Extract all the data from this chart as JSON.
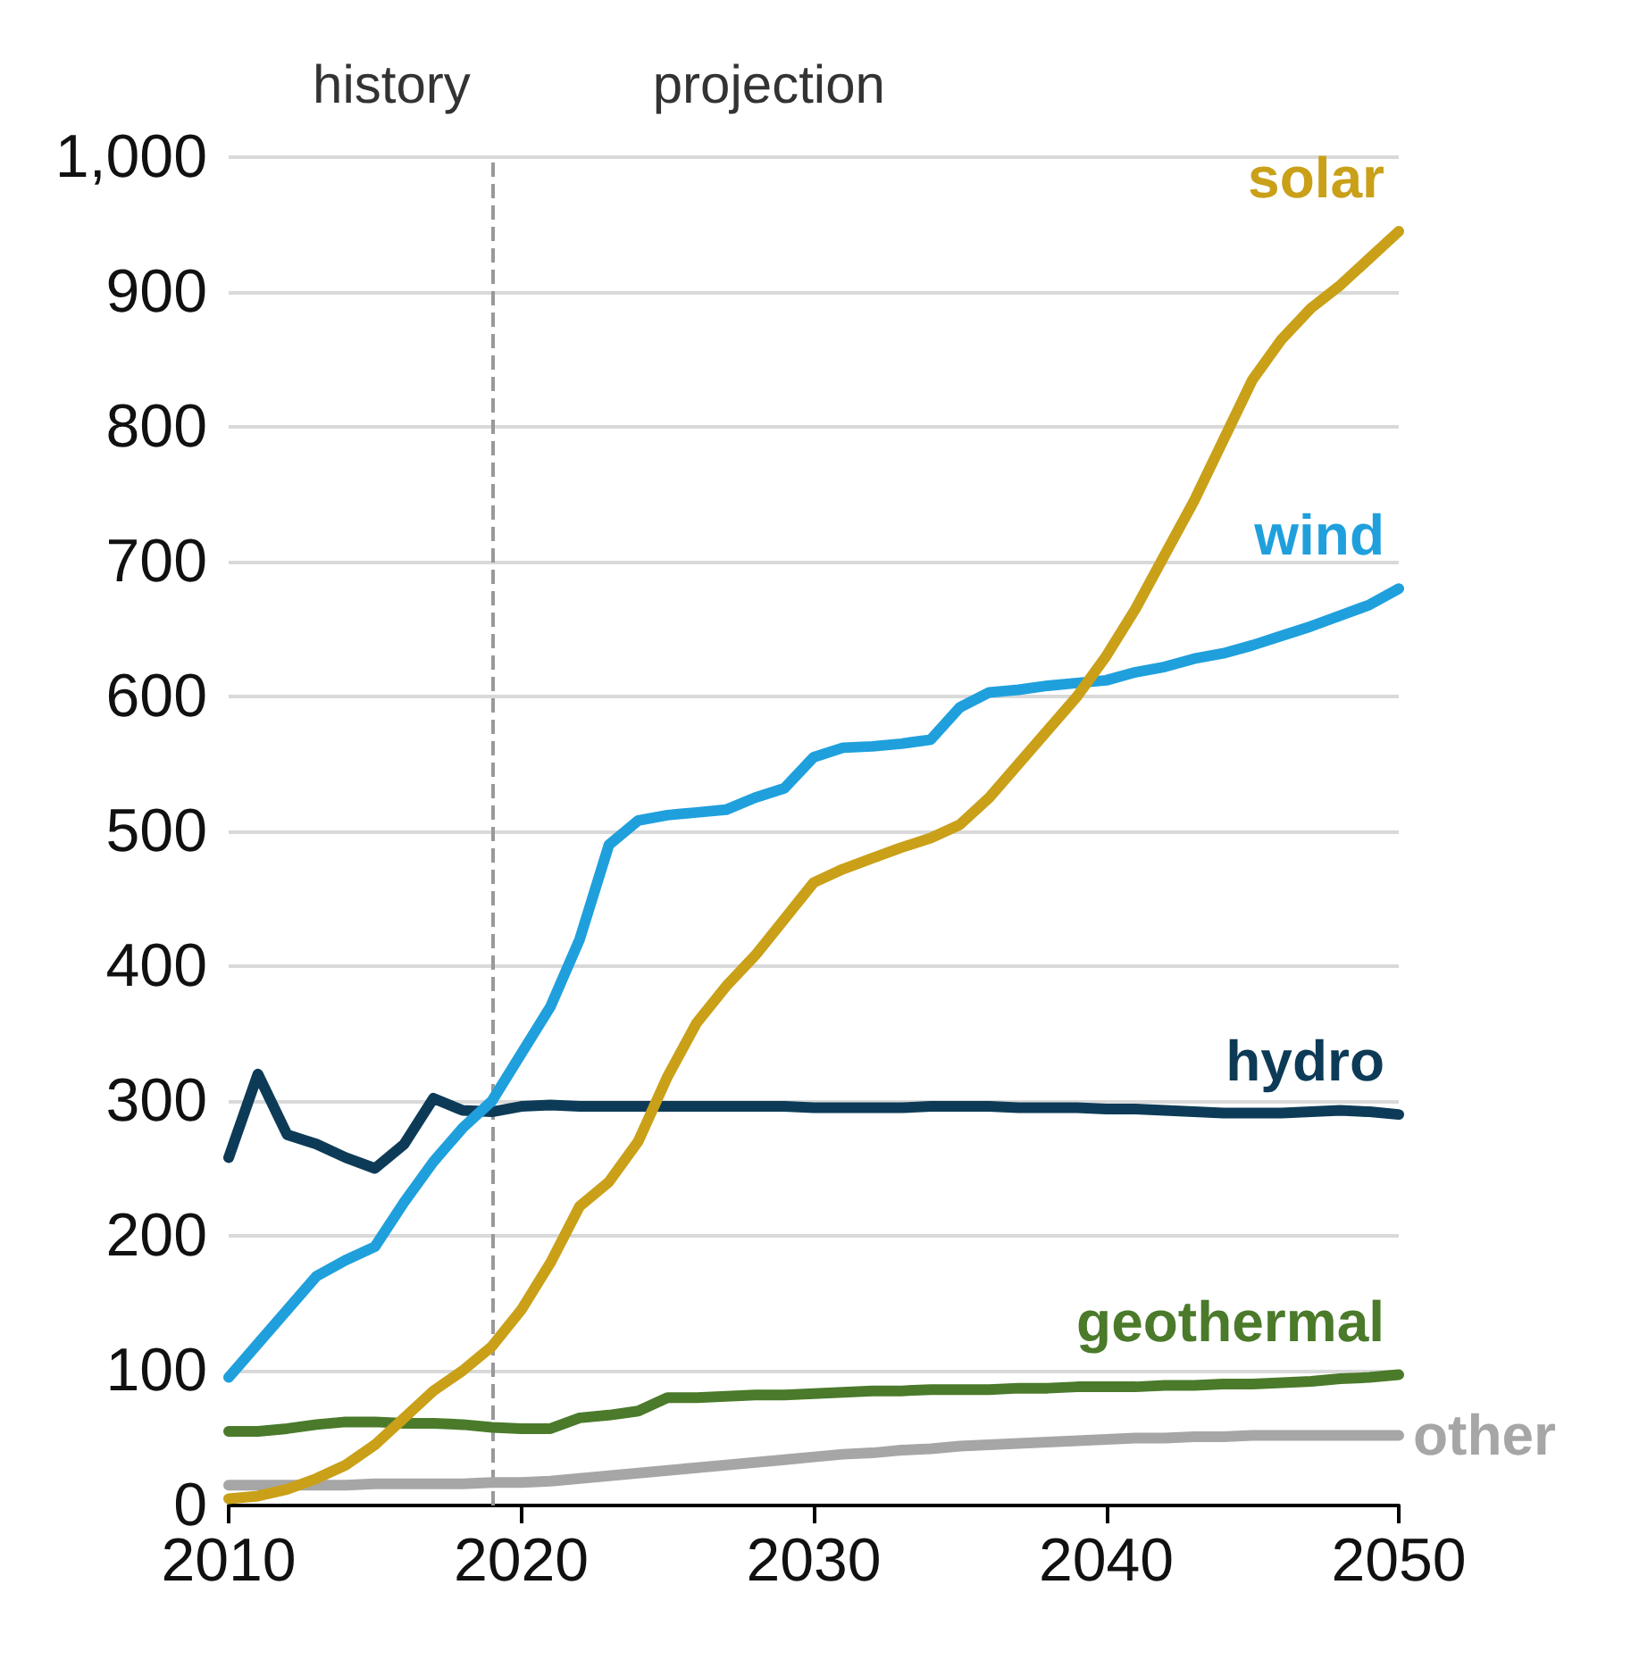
{
  "chart_data": {
    "type": "line",
    "x": [
      2010,
      2011,
      2012,
      2013,
      2014,
      2015,
      2016,
      2017,
      2018,
      2019,
      2020,
      2021,
      2022,
      2023,
      2024,
      2025,
      2026,
      2027,
      2028,
      2029,
      2030,
      2031,
      2032,
      2033,
      2034,
      2035,
      2036,
      2037,
      2038,
      2039,
      2040,
      2041,
      2042,
      2043,
      2044,
      2045,
      2046,
      2047,
      2048,
      2049,
      2050
    ],
    "series": [
      {
        "name": "solar",
        "color": "#c9a018",
        "values": [
          5,
          7,
          12,
          20,
          30,
          45,
          65,
          85,
          100,
          118,
          145,
          180,
          222,
          240,
          270,
          318,
          358,
          385,
          408,
          435,
          462,
          472,
          480,
          488,
          495,
          505,
          525,
          550,
          575,
          600,
          630,
          665,
          705,
          745,
          790,
          835,
          865,
          888,
          905,
          925,
          945
        ]
      },
      {
        "name": "wind",
        "color": "#1fa0dc",
        "values": [
          95,
          120,
          145,
          170,
          182,
          192,
          225,
          255,
          280,
          300,
          335,
          370,
          420,
          490,
          508,
          512,
          514,
          516,
          525,
          532,
          555,
          562,
          563,
          565,
          568,
          592,
          603,
          605,
          608,
          610,
          612,
          618,
          622,
          628,
          632,
          638,
          645,
          652,
          660,
          668,
          680
        ]
      },
      {
        "name": "hydro",
        "color": "#0d3b57",
        "values": [
          258,
          320,
          275,
          268,
          258,
          250,
          268,
          302,
          293,
          292,
          296,
          297,
          296,
          296,
          296,
          296,
          296,
          296,
          296,
          296,
          295,
          295,
          295,
          295,
          296,
          296,
          296,
          295,
          295,
          295,
          294,
          294,
          293,
          292,
          291,
          291,
          291,
          292,
          293,
          292,
          290
        ]
      },
      {
        "name": "geothermal",
        "color": "#4a7a2a",
        "values": [
          55,
          55,
          57,
          60,
          62,
          62,
          61,
          61,
          60,
          58,
          57,
          57,
          65,
          67,
          70,
          80,
          80,
          81,
          82,
          82,
          83,
          84,
          85,
          85,
          86,
          86,
          86,
          87,
          87,
          88,
          88,
          88,
          89,
          89,
          90,
          90,
          91,
          92,
          94,
          95,
          97
        ]
      },
      {
        "name": "other",
        "color": "#a6a6a6",
        "values": [
          15,
          15,
          15,
          15,
          15,
          16,
          16,
          16,
          16,
          17,
          17,
          18,
          20,
          22,
          24,
          26,
          28,
          30,
          32,
          34,
          36,
          38,
          39,
          41,
          42,
          44,
          45,
          46,
          47,
          48,
          49,
          50,
          50,
          51,
          51,
          52,
          52,
          52,
          52,
          52,
          52
        ]
      }
    ],
    "xlim": [
      2010,
      2050
    ],
    "xticks": [
      2010,
      2020,
      2030,
      2040,
      2050
    ],
    "ylim": [
      0,
      1000
    ],
    "yticks": [
      0,
      100,
      200,
      300,
      400,
      500,
      600,
      700,
      800,
      900,
      {
        "value": 1000,
        "label": "1,000"
      }
    ],
    "grid": "y",
    "legend": false,
    "marker": "none",
    "line_style": "solid",
    "ref_lines": [
      {
        "axis": "x",
        "value": 2019,
        "color": "#999999",
        "line_style": "dashed"
      }
    ],
    "annotations": [
      "history",
      "projection"
    ]
  }
}
